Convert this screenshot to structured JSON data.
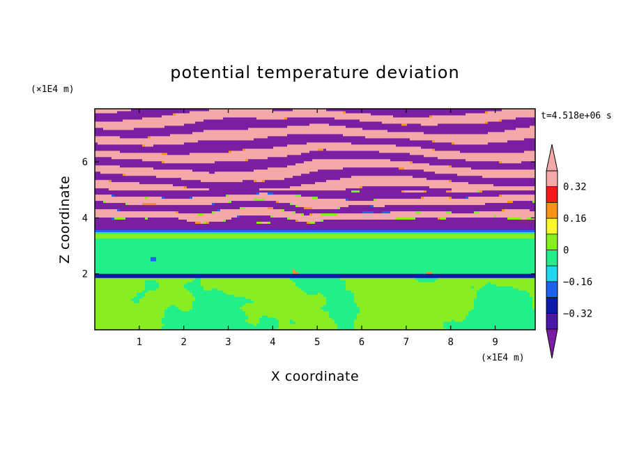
{
  "chart_data": {
    "type": "heatmap",
    "title": "potential temperature deviation",
    "xlabel": "X coordinate",
    "ylabel": "Z coordinate",
    "x_unit": "(×1E4 m)",
    "z_unit": "(×1E4 m)",
    "time_label": "t=4.518e+06 s",
    "xlim": [
      0,
      9.9
    ],
    "ylim": [
      0,
      7.9
    ],
    "x_ticks": [
      1,
      2,
      3,
      4,
      5,
      6,
      7,
      8,
      9
    ],
    "y_ticks": [
      2,
      4,
      6
    ],
    "grid": false,
    "colorbar": {
      "placement": "right",
      "levels": [
        -0.4,
        -0.32,
        -0.24,
        -0.16,
        -0.08,
        0,
        0.08,
        0.16,
        0.24,
        0.32,
        0.4
      ],
      "tick_values": [
        -0.32,
        -0.16,
        0,
        0.16,
        0.32
      ],
      "tick_labels": [
        "−0.32",
        "−0.16",
        "0",
        "0.16",
        "0.32"
      ],
      "colors": [
        "#7a1fa2",
        "#4a17a8",
        "#0c1aa8",
        "#1f62f0",
        "#22d8f0",
        "#22ee8a",
        "#88ee22",
        "#f8f82a",
        "#f89418",
        "#f21a1a",
        "#f4a8a8"
      ],
      "extend": "both"
    },
    "layers": [
      {
        "z_range": [
          5.0,
          7.9
        ],
        "pattern": "alternating wavy bands",
        "values": [
          0.42,
          -0.42
        ]
      },
      {
        "z_range": [
          3.8,
          5.0
        ],
        "pattern": "mixed filaments",
        "values": [
          0.42,
          -0.42,
          0.2,
          -0.2
        ]
      },
      {
        "z_range": [
          3.6,
          3.8
        ],
        "value": -0.42
      },
      {
        "z_range": [
          3.3,
          3.6
        ],
        "pattern": "thin layers",
        "values": [
          -0.2,
          -0.08,
          0.0
        ]
      },
      {
        "z_range": [
          2.0,
          3.3
        ],
        "value": -0.04
      },
      {
        "z_range": [
          1.9,
          2.0
        ],
        "value": -0.3
      },
      {
        "z_range": [
          0.0,
          1.9
        ],
        "pattern": "convective plumes",
        "values": [
          0.04,
          -0.04
        ]
      }
    ]
  }
}
